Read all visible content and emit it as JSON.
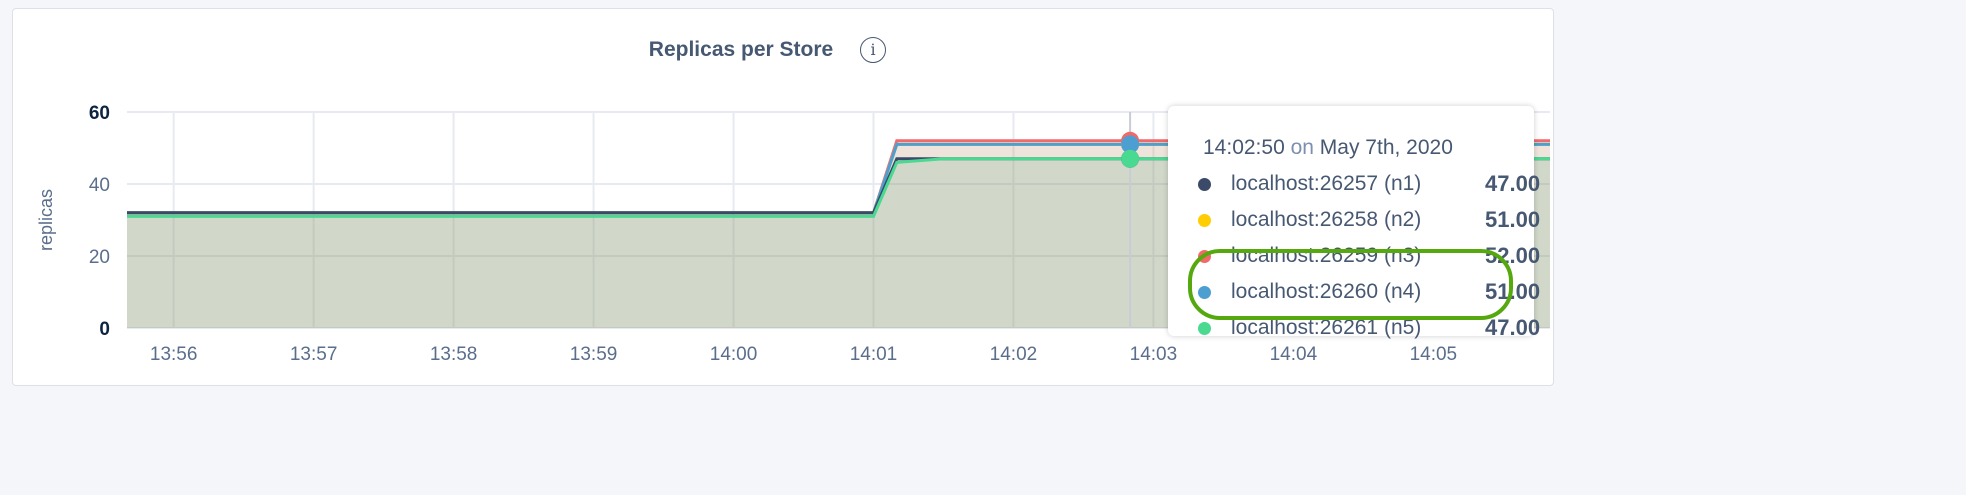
{
  "title": "Replicas per Store",
  "info_icon": "info-icon",
  "tooltip": {
    "time": "14:02:50",
    "on": "on",
    "date": "May 7th, 2020",
    "rows": [
      {
        "label": "localhost:26257 (n1)",
        "value": "47.00",
        "color": "#3a4a68"
      },
      {
        "label": "localhost:26258 (n2)",
        "value": "51.00",
        "color": "#ffcd02"
      },
      {
        "label": "localhost:26259 (n3)",
        "value": "52.00",
        "color": "#f16969"
      },
      {
        "label": "localhost:26260 (n4)",
        "value": "51.00",
        "color": "#4e9fd1"
      },
      {
        "label": "localhost:26261 (n5)",
        "value": "47.00",
        "color": "#49d990"
      }
    ]
  },
  "highlight_color": "#56a80f",
  "chart_data": {
    "type": "line",
    "title": "Replicas per Store",
    "ylabel": "replicas",
    "ylim": [
      0,
      60
    ],
    "yticks": [
      "0",
      "20",
      "40",
      "60"
    ],
    "xticks": [
      "13:56",
      "13:57",
      "13:58",
      "13:59",
      "14:00",
      "14:01",
      "14:02",
      "14:03",
      "14:04",
      "14:05"
    ],
    "xrange": [
      "13:55:40",
      "14:05:50"
    ],
    "grid": true,
    "hover_time": "14:02:50",
    "x": [
      "13:55:40",
      "14:01:00",
      "14:01:10",
      "14:01:30",
      "14:05:50"
    ],
    "series": [
      {
        "name": "localhost:26257 (n1)",
        "color": "#3a4a68",
        "values": [
          32,
          32,
          47,
          47,
          47
        ]
      },
      {
        "name": "localhost:26258 (n2)",
        "color": "#ffcd02",
        "values": [
          32,
          32,
          51,
          51,
          51
        ]
      },
      {
        "name": "localhost:26259 (n3)",
        "color": "#f16969",
        "values": [
          32,
          32,
          52,
          52,
          52
        ]
      },
      {
        "name": "localhost:26260 (n4)",
        "color": "#4e9fd1",
        "values": [
          32,
          32,
          51,
          51,
          51
        ]
      },
      {
        "name": "localhost:26261 (n5)",
        "color": "#49d990",
        "values": [
          31,
          31,
          46,
          47,
          47
        ]
      }
    ]
  }
}
